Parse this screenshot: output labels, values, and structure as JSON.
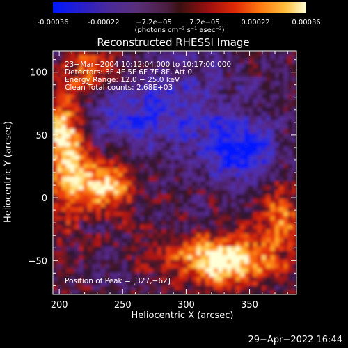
{
  "colorbar": {
    "ticks": [
      "-0.00036",
      "-0.00022",
      "−7.2e−05",
      "7.2e−05",
      "0.00022",
      "0.00036"
    ],
    "unit": "(photons cm⁻² s⁻¹ asec⁻²)",
    "range": [
      -0.00036,
      0.00036
    ]
  },
  "chart_data": {
    "type": "heatmap",
    "title": "Reconstructed RHESSI Image",
    "xlabel": "Heliocentric X (arcsec)",
    "ylabel": "Heliocentric Y (arcsec)",
    "xlim": [
      195,
      387
    ],
    "ylim": [
      -77,
      117
    ],
    "x_ticks": [
      "200",
      "250",
      "300",
      "350"
    ],
    "x_tick_values": [
      200,
      250,
      300,
      350
    ],
    "y_ticks": [
      "100",
      "50",
      "0",
      "−50"
    ],
    "y_tick_values": [
      100,
      50,
      0,
      -50
    ],
    "peak": {
      "x": 327,
      "y": -62
    },
    "peak_label": "Position of Peak = [327,−62]",
    "info_lines": [
      "23−Mar−2004 10:12:04.000 to 10:17:00.000",
      "Detectors: 3F 4F 5F 6F 7F 8F, Att 0",
      "Energy Range: 12.0 − 25.0 keV",
      "Clean    Total counts: 2.68E+03"
    ]
  },
  "footer": {
    "timestamp": "29−Apr−2022 16:44"
  },
  "colors": {
    "axis": "#ffffff",
    "background": "#000000"
  }
}
